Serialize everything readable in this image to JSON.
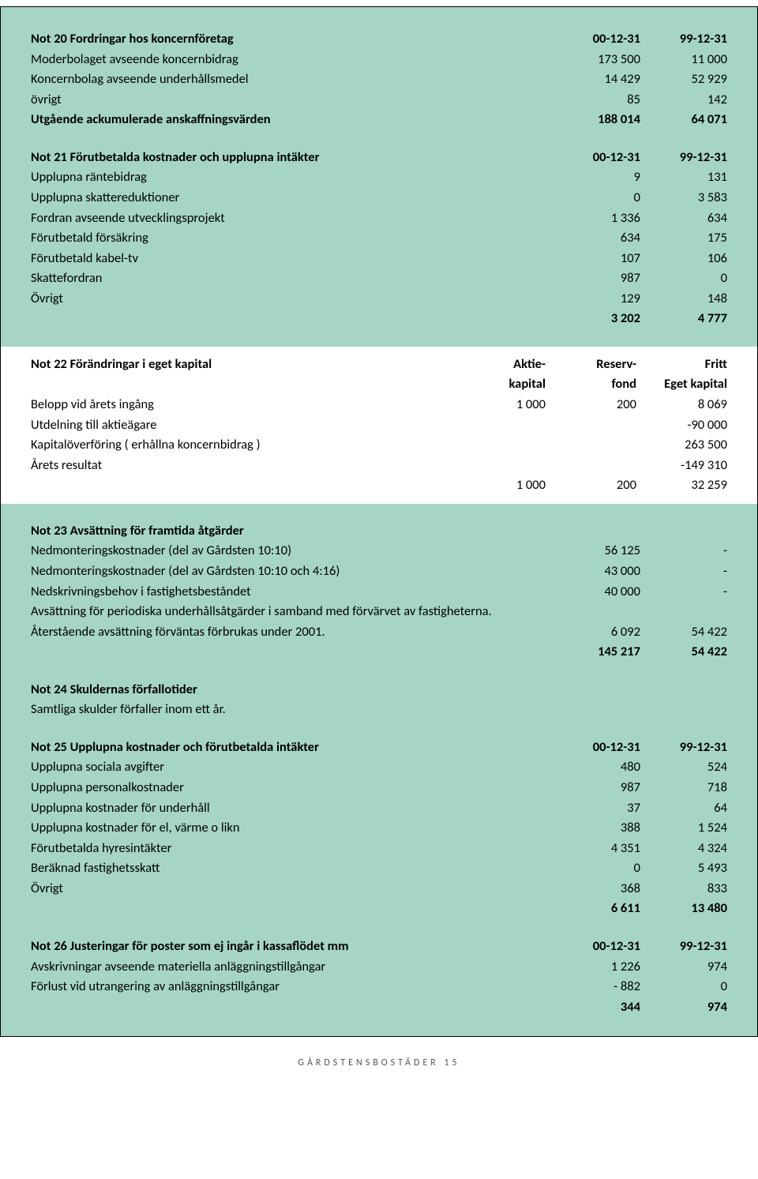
{
  "note20": {
    "title": "Not 20 Fordringar hos koncernföretag",
    "h1": "00-12-31",
    "h2": "99-12-31",
    "rows": [
      {
        "label": "Moderbolaget avseende koncernbidrag",
        "c1": "173 500",
        "c2": "11 000"
      },
      {
        "label": "Koncernbolag avseende underhållsmedel",
        "c1": "14 429",
        "c2": "52 929"
      },
      {
        "label": "övrigt",
        "c1": "85",
        "c2": "142"
      },
      {
        "label": "Utgående ackumulerade anskaffningsvärden",
        "c1": "188 014",
        "c2": "64 071",
        "bold": true
      }
    ]
  },
  "note21": {
    "title": "Not 21 Förutbetalda kostnader och upplupna intäkter",
    "h1": "00-12-31",
    "h2": "99-12-31",
    "rows": [
      {
        "label": "Upplupna räntebidrag",
        "c1": "9",
        "c2": "131"
      },
      {
        "label": "Upplupna skattereduktioner",
        "c1": "0",
        "c2": "3 583"
      },
      {
        "label": "Fordran avseende utvecklingsprojekt",
        "c1": "1 336",
        "c2": "634"
      },
      {
        "label": "Förutbetald försäkring",
        "c1": "634",
        "c2": "175"
      },
      {
        "label": "Förutbetald kabel-tv",
        "c1": "107",
        "c2": "106"
      },
      {
        "label": "Skattefordran",
        "c1": "987",
        "c2": "0"
      },
      {
        "label": "Övrigt",
        "c1": "129",
        "c2": "148"
      },
      {
        "label": "",
        "c1": "3 202",
        "c2": "4 777",
        "bold": true
      }
    ]
  },
  "note22": {
    "title": "Not 22  Förändringar i eget kapital",
    "h1a": "Aktie-",
    "h2a": "Reserv-",
    "h3a": "Fritt",
    "h1b": "kapital",
    "h2b": "fond",
    "h3b": "Eget kapital",
    "rows": [
      {
        "label": "Belopp vid årets ingång",
        "c1": "1 000",
        "c2": "200",
        "c3": "8 069"
      },
      {
        "label": "Utdelning till aktieägare",
        "c1": "",
        "c2": "",
        "c3": "-90 000"
      },
      {
        "label": "Kapitalöverföring ( erhållna koncernbidrag )",
        "c1": "",
        "c2": "",
        "c3": "263 500"
      },
      {
        "label": "Årets resultat",
        "c1": "",
        "c2": "",
        "c3": "-149 310"
      },
      {
        "label": "",
        "c1": "1 000",
        "c2": "200",
        "c3": "32 259"
      }
    ]
  },
  "note23": {
    "title": "Not 23 Avsättning för framtida åtgärder",
    "rows": [
      {
        "label": "Nedmonteringskostnader (del av Gårdsten 10:10)",
        "c1": "56 125",
        "c2": "-"
      },
      {
        "label": "Nedmonteringskostnader (del av Gårdsten 10:10 och 4:16)",
        "c1": "43 000",
        "c2": "-"
      },
      {
        "label": "Nedskrivningsbehov i fastighetsbeståndet",
        "c1": "40 000",
        "c2": "-"
      }
    ],
    "text1": "Avsättning för periodiska underhållsåtgärder i samband med förvärvet av fastigheterna.",
    "text2": "Återstående avsättning förväntas förbrukas under 2001.",
    "r2": {
      "c1": "6 092",
      "c2": "54 422"
    },
    "total": {
      "c1": "145 217",
      "c2": "54 422"
    }
  },
  "note24": {
    "title": "Not 24 Skuldernas förfallotider",
    "text": "Samtliga skulder förfaller inom ett år."
  },
  "note25": {
    "title": "Not 25 Upplupna kostnader och förutbetalda intäkter",
    "h1": "00-12-31",
    "h2": "99-12-31",
    "rows": [
      {
        "label": "Upplupna sociala avgifter",
        "c1": "480",
        "c2": "524"
      },
      {
        "label": "Upplupna personalkostnader",
        "c1": "987",
        "c2": "718"
      },
      {
        "label": "Upplupna kostnader för underhåll",
        "c1": "37",
        "c2": "64"
      },
      {
        "label": "Upplupna kostnader för el, värme o likn",
        "c1": "388",
        "c2": "1 524"
      },
      {
        "label": "Förutbetalda hyresintäkter",
        "c1": "4 351",
        "c2": "4 324"
      },
      {
        "label": "Beräknad fastighetsskatt",
        "c1": "0",
        "c2": "5 493"
      },
      {
        "label": "Övrigt",
        "c1": "368",
        "c2": "833"
      },
      {
        "label": "",
        "c1": "6 611",
        "c2": "13 480",
        "bold": true
      }
    ]
  },
  "note26": {
    "title": "Not 26  Justeringar för poster som ej ingår i kassaflödet mm",
    "h1": "00-12-31",
    "h2": "99-12-31",
    "rows": [
      {
        "label": "Avskrivningar avseende materiella anläggningstillgångar",
        "c1": "1 226",
        "c2": "974"
      },
      {
        "label": "Förlust vid utrangering av anläggningstillgångar",
        "c1": "- 882",
        "c2": "0"
      },
      {
        "label": "",
        "c1": "344",
        "c2": "974",
        "bold": true
      }
    ]
  },
  "footer": "GÅRDSTENSBOSTÄDER 15"
}
